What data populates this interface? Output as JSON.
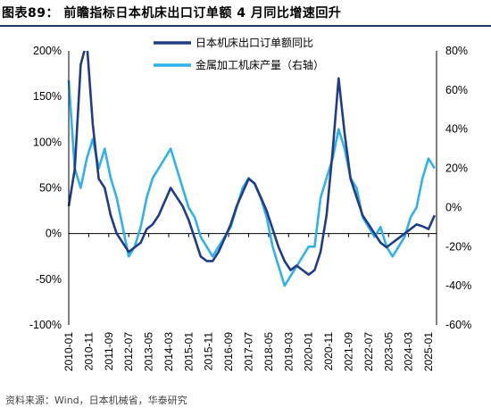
{
  "header": {
    "title": "图表89：  前瞻指标日本机床出口订单额 4 月同比增速回升"
  },
  "footer": {
    "source": "资料来源：Wind，日本机械省，华泰研究"
  },
  "colors": {
    "series1": "#1f3c88",
    "series2": "#30b0ec",
    "title_rule": "#1f3864"
  },
  "chart_data": {
    "type": "line",
    "x_ticks": [
      "2010-01",
      "2010-11",
      "2011-09",
      "2012-07",
      "2013-05",
      "2014-03",
      "2015-01",
      "2015-11",
      "2016-09",
      "2017-07",
      "2018-05",
      "2019-03",
      "2020-01",
      "2020-11",
      "2021-09",
      "2022-07",
      "2023-05",
      "2024-03",
      "2025-01"
    ],
    "y_left": {
      "lim": [
        -100,
        200
      ],
      "ticks": [
        -100,
        -50,
        0,
        50,
        100,
        150,
        200
      ],
      "labels": [
        "-100%",
        "-50%",
        "0%",
        "50%",
        "100%",
        "150%",
        "200%"
      ]
    },
    "y_right": {
      "lim": [
        -60,
        80
      ],
      "ticks": [
        -60,
        -40,
        -20,
        0,
        20,
        40,
        60,
        80
      ],
      "labels": [
        "-60%",
        "-40%",
        "-20%",
        "0%",
        "20%",
        "40%",
        "60%",
        "80%"
      ]
    },
    "legend": [
      "日本机床出口订单额同比",
      "金属加工机床产量（右轴）"
    ],
    "legend_position": "top-center",
    "series": [
      {
        "name": "日本机床出口订单额同比",
        "axis": "left",
        "x": [
          "2010-01",
          "2010-04",
          "2010-07",
          "2010-10",
          "2011-01",
          "2011-04",
          "2011-07",
          "2011-10",
          "2012-01",
          "2012-04",
          "2012-07",
          "2012-10",
          "2013-01",
          "2013-04",
          "2013-07",
          "2013-10",
          "2014-01",
          "2014-04",
          "2014-07",
          "2014-10",
          "2015-01",
          "2015-04",
          "2015-07",
          "2015-10",
          "2016-01",
          "2016-04",
          "2016-07",
          "2016-10",
          "2017-01",
          "2017-04",
          "2017-07",
          "2017-10",
          "2018-01",
          "2018-04",
          "2018-07",
          "2018-10",
          "2019-01",
          "2019-04",
          "2019-07",
          "2019-10",
          "2020-01",
          "2020-04",
          "2020-07",
          "2020-10",
          "2021-01",
          "2021-04",
          "2021-07",
          "2021-10",
          "2022-01",
          "2022-04",
          "2022-07",
          "2022-10",
          "2023-01",
          "2023-04",
          "2023-07",
          "2023-10",
          "2024-01",
          "2024-04",
          "2024-07",
          "2024-10",
          "2025-01",
          "2025-04"
        ],
        "values": [
          30,
          70,
          185,
          210,
          120,
          60,
          50,
          20,
          0,
          -10,
          -20,
          -15,
          -10,
          5,
          10,
          20,
          35,
          50,
          40,
          30,
          15,
          -5,
          -25,
          -30,
          -30,
          -20,
          -5,
          10,
          30,
          45,
          60,
          55,
          40,
          25,
          5,
          -15,
          -30,
          -40,
          -35,
          -40,
          -45,
          -40,
          -20,
          20,
          90,
          170,
          110,
          60,
          40,
          20,
          10,
          0,
          -10,
          -15,
          -10,
          -5,
          0,
          5,
          10,
          8,
          5,
          20
        ]
      },
      {
        "name": "金属加工机床产量（右轴）",
        "axis": "right",
        "x": [
          "2010-01",
          "2010-04",
          "2010-07",
          "2010-10",
          "2011-01",
          "2011-04",
          "2011-07",
          "2011-10",
          "2012-01",
          "2012-04",
          "2012-07",
          "2012-10",
          "2013-01",
          "2013-04",
          "2013-07",
          "2013-10",
          "2014-01",
          "2014-04",
          "2014-07",
          "2014-10",
          "2015-01",
          "2015-04",
          "2015-07",
          "2015-10",
          "2016-01",
          "2016-04",
          "2016-07",
          "2016-10",
          "2017-01",
          "2017-04",
          "2017-07",
          "2017-10",
          "2018-01",
          "2018-04",
          "2018-07",
          "2018-10",
          "2019-01",
          "2019-04",
          "2019-07",
          "2019-10",
          "2020-01",
          "2020-04",
          "2020-07",
          "2020-10",
          "2021-01",
          "2021-04",
          "2021-07",
          "2021-10",
          "2022-01",
          "2022-04",
          "2022-07",
          "2022-10",
          "2023-01",
          "2023-04",
          "2023-07",
          "2023-10",
          "2024-01",
          "2024-04",
          "2024-07",
          "2024-10",
          "2025-01",
          "2025-04"
        ],
        "values": [
          65,
          20,
          10,
          25,
          35,
          20,
          30,
          15,
          5,
          -10,
          -25,
          -20,
          -10,
          5,
          15,
          20,
          25,
          30,
          20,
          10,
          0,
          -5,
          -15,
          -20,
          -25,
          -20,
          -15,
          -10,
          0,
          10,
          15,
          12,
          5,
          -5,
          -20,
          -30,
          -40,
          -35,
          -30,
          -25,
          -20,
          -20,
          5,
          15,
          25,
          40,
          30,
          15,
          10,
          -5,
          -10,
          -15,
          -10,
          -20,
          -25,
          -20,
          -15,
          -5,
          0,
          15,
          25,
          20
        ]
      }
    ]
  }
}
